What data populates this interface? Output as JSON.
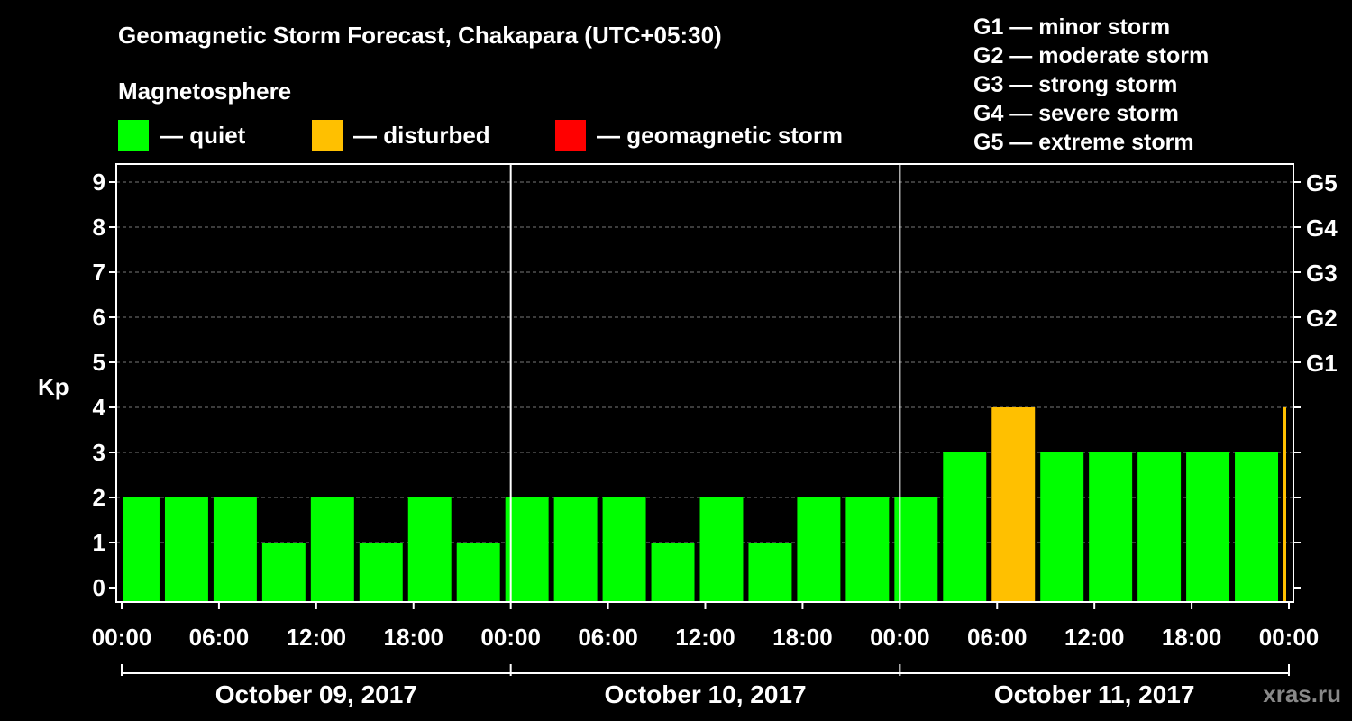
{
  "title": "Geomagnetic Storm Forecast, Chakapara (UTC+05:30)",
  "subtitle": "Magnetosphere",
  "watermark": "xras.ru",
  "legend": [
    {
      "label": "— quiet",
      "color": "#00ff00"
    },
    {
      "label": "— disturbed",
      "color": "#ffc000"
    },
    {
      "label": "— geomagnetic storm",
      "color": "#ff0000"
    }
  ],
  "storm_scale": [
    "G1 — minor storm",
    "G2 — moderate storm",
    "G3 — strong storm",
    "G4 — severe storm",
    "G5 — extreme storm"
  ],
  "chart_data": {
    "type": "bar",
    "ylabel": "Kp",
    "ylim": [
      0,
      9
    ],
    "yticks": [
      0,
      1,
      2,
      3,
      4,
      5,
      6,
      7,
      8,
      9
    ],
    "right_axis_labels": [
      {
        "kp": 5,
        "label": "G1"
      },
      {
        "kp": 6,
        "label": "G2"
      },
      {
        "kp": 7,
        "label": "G3"
      },
      {
        "kp": 8,
        "label": "G4"
      },
      {
        "kp": 9,
        "label": "G5"
      }
    ],
    "x_tick_labels": [
      "00:00",
      "06:00",
      "12:00",
      "18:00",
      "00:00",
      "06:00",
      "12:00",
      "18:00",
      "00:00",
      "06:00",
      "12:00",
      "18:00",
      "00:00"
    ],
    "days": [
      "October 09, 2017",
      "October 10, 2017",
      "October 11, 2017"
    ],
    "grid": "horizontal dashed",
    "status_colors": {
      "quiet": "#00ff00",
      "disturbed": "#ffc000",
      "storm": "#ff0000"
    },
    "bars": [
      {
        "start": "Oct 09 00:00",
        "end": "Oct 09 02:30",
        "kp": 2,
        "status": "quiet"
      },
      {
        "start": "Oct 09 02:30",
        "end": "Oct 09 05:30",
        "kp": 2,
        "status": "quiet"
      },
      {
        "start": "Oct 09 05:30",
        "end": "Oct 09 08:30",
        "kp": 2,
        "status": "quiet"
      },
      {
        "start": "Oct 09 08:30",
        "end": "Oct 09 11:30",
        "kp": 1,
        "status": "quiet"
      },
      {
        "start": "Oct 09 11:30",
        "end": "Oct 09 14:30",
        "kp": 2,
        "status": "quiet"
      },
      {
        "start": "Oct 09 14:30",
        "end": "Oct 09 17:30",
        "kp": 1,
        "status": "quiet"
      },
      {
        "start": "Oct 09 17:30",
        "end": "Oct 09 20:30",
        "kp": 2,
        "status": "quiet"
      },
      {
        "start": "Oct 09 20:30",
        "end": "Oct 09 23:30",
        "kp": 1,
        "status": "quiet"
      },
      {
        "start": "Oct 09 23:30",
        "end": "Oct 10 02:30",
        "kp": 2,
        "status": "quiet"
      },
      {
        "start": "Oct 10 02:30",
        "end": "Oct 10 05:30",
        "kp": 2,
        "status": "quiet"
      },
      {
        "start": "Oct 10 05:30",
        "end": "Oct 10 08:30",
        "kp": 2,
        "status": "quiet"
      },
      {
        "start": "Oct 10 08:30",
        "end": "Oct 10 11:30",
        "kp": 1,
        "status": "quiet"
      },
      {
        "start": "Oct 10 11:30",
        "end": "Oct 10 14:30",
        "kp": 2,
        "status": "quiet"
      },
      {
        "start": "Oct 10 14:30",
        "end": "Oct 10 17:30",
        "kp": 1,
        "status": "quiet"
      },
      {
        "start": "Oct 10 17:30",
        "end": "Oct 10 20:30",
        "kp": 2,
        "status": "quiet"
      },
      {
        "start": "Oct 10 20:30",
        "end": "Oct 10 23:30",
        "kp": 2,
        "status": "quiet"
      },
      {
        "start": "Oct 10 23:30",
        "end": "Oct 11 02:30",
        "kp": 2,
        "status": "quiet"
      },
      {
        "start": "Oct 11 02:30",
        "end": "Oct 11 05:30",
        "kp": 3,
        "status": "quiet"
      },
      {
        "start": "Oct 11 05:30",
        "end": "Oct 11 08:30",
        "kp": 4,
        "status": "disturbed"
      },
      {
        "start": "Oct 11 08:30",
        "end": "Oct 11 11:30",
        "kp": 3,
        "status": "quiet"
      },
      {
        "start": "Oct 11 11:30",
        "end": "Oct 11 14:30",
        "kp": 3,
        "status": "quiet"
      },
      {
        "start": "Oct 11 14:30",
        "end": "Oct 11 17:30",
        "kp": 3,
        "status": "quiet"
      },
      {
        "start": "Oct 11 17:30",
        "end": "Oct 11 20:30",
        "kp": 3,
        "status": "quiet"
      },
      {
        "start": "Oct 11 20:30",
        "end": "Oct 11 23:30",
        "kp": 3,
        "status": "quiet"
      },
      {
        "start": "Oct 11 23:30",
        "end": "Oct 12 00:00",
        "kp": 4,
        "status": "disturbed"
      }
    ]
  }
}
